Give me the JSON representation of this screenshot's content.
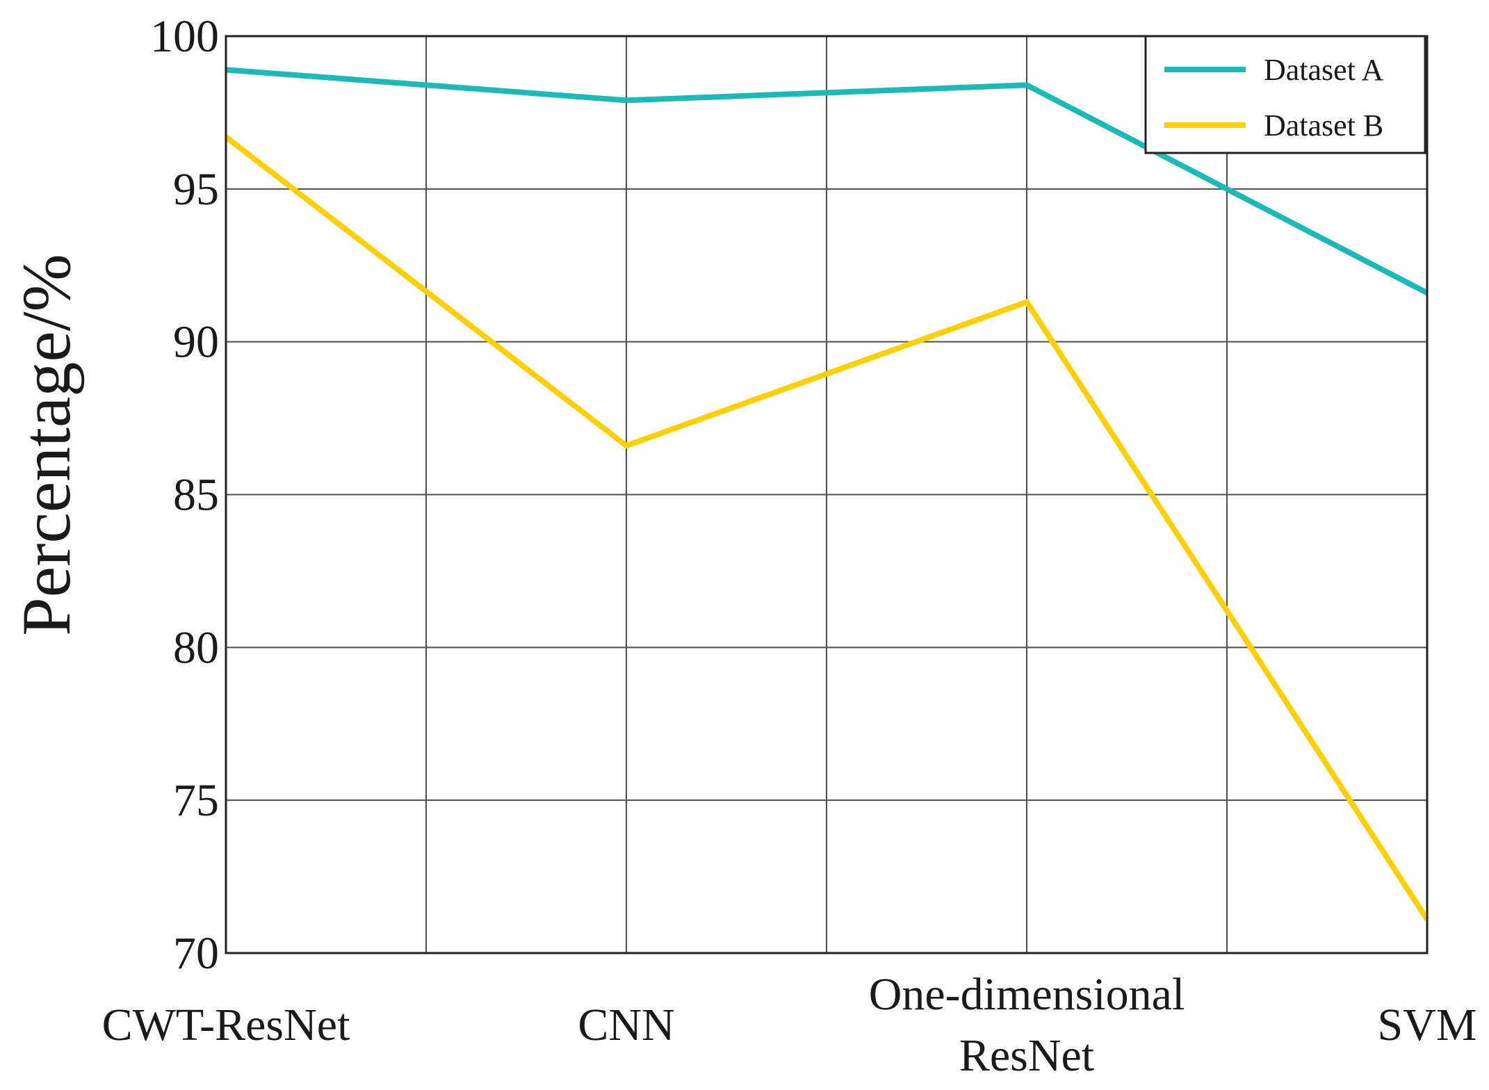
{
  "chart_data": {
    "type": "line",
    "categories": [
      "CWT-ResNet",
      "CNN",
      "One-dimensional ResNet",
      "SVM"
    ],
    "category_label_lines": [
      [
        "CWT-ResNet"
      ],
      [
        "CNN"
      ],
      [
        "One-dimensional",
        "ResNet"
      ],
      [
        "SVM"
      ]
    ],
    "series": [
      {
        "name": "Dataset A",
        "color": "#1ABAB8",
        "values": [
          98.9,
          97.9,
          98.4,
          91.6
        ]
      },
      {
        "name": "Dataset B",
        "color": "#FFD000",
        "values": [
          96.7,
          86.6,
          91.3,
          71.1
        ]
      }
    ],
    "title": "",
    "xlabel": "",
    "ylabel": "Percentage/%",
    "ylim": [
      70,
      100
    ],
    "yticks": [
      70,
      75,
      80,
      85,
      90,
      95,
      100
    ],
    "grid": true,
    "legend": "top-right"
  }
}
